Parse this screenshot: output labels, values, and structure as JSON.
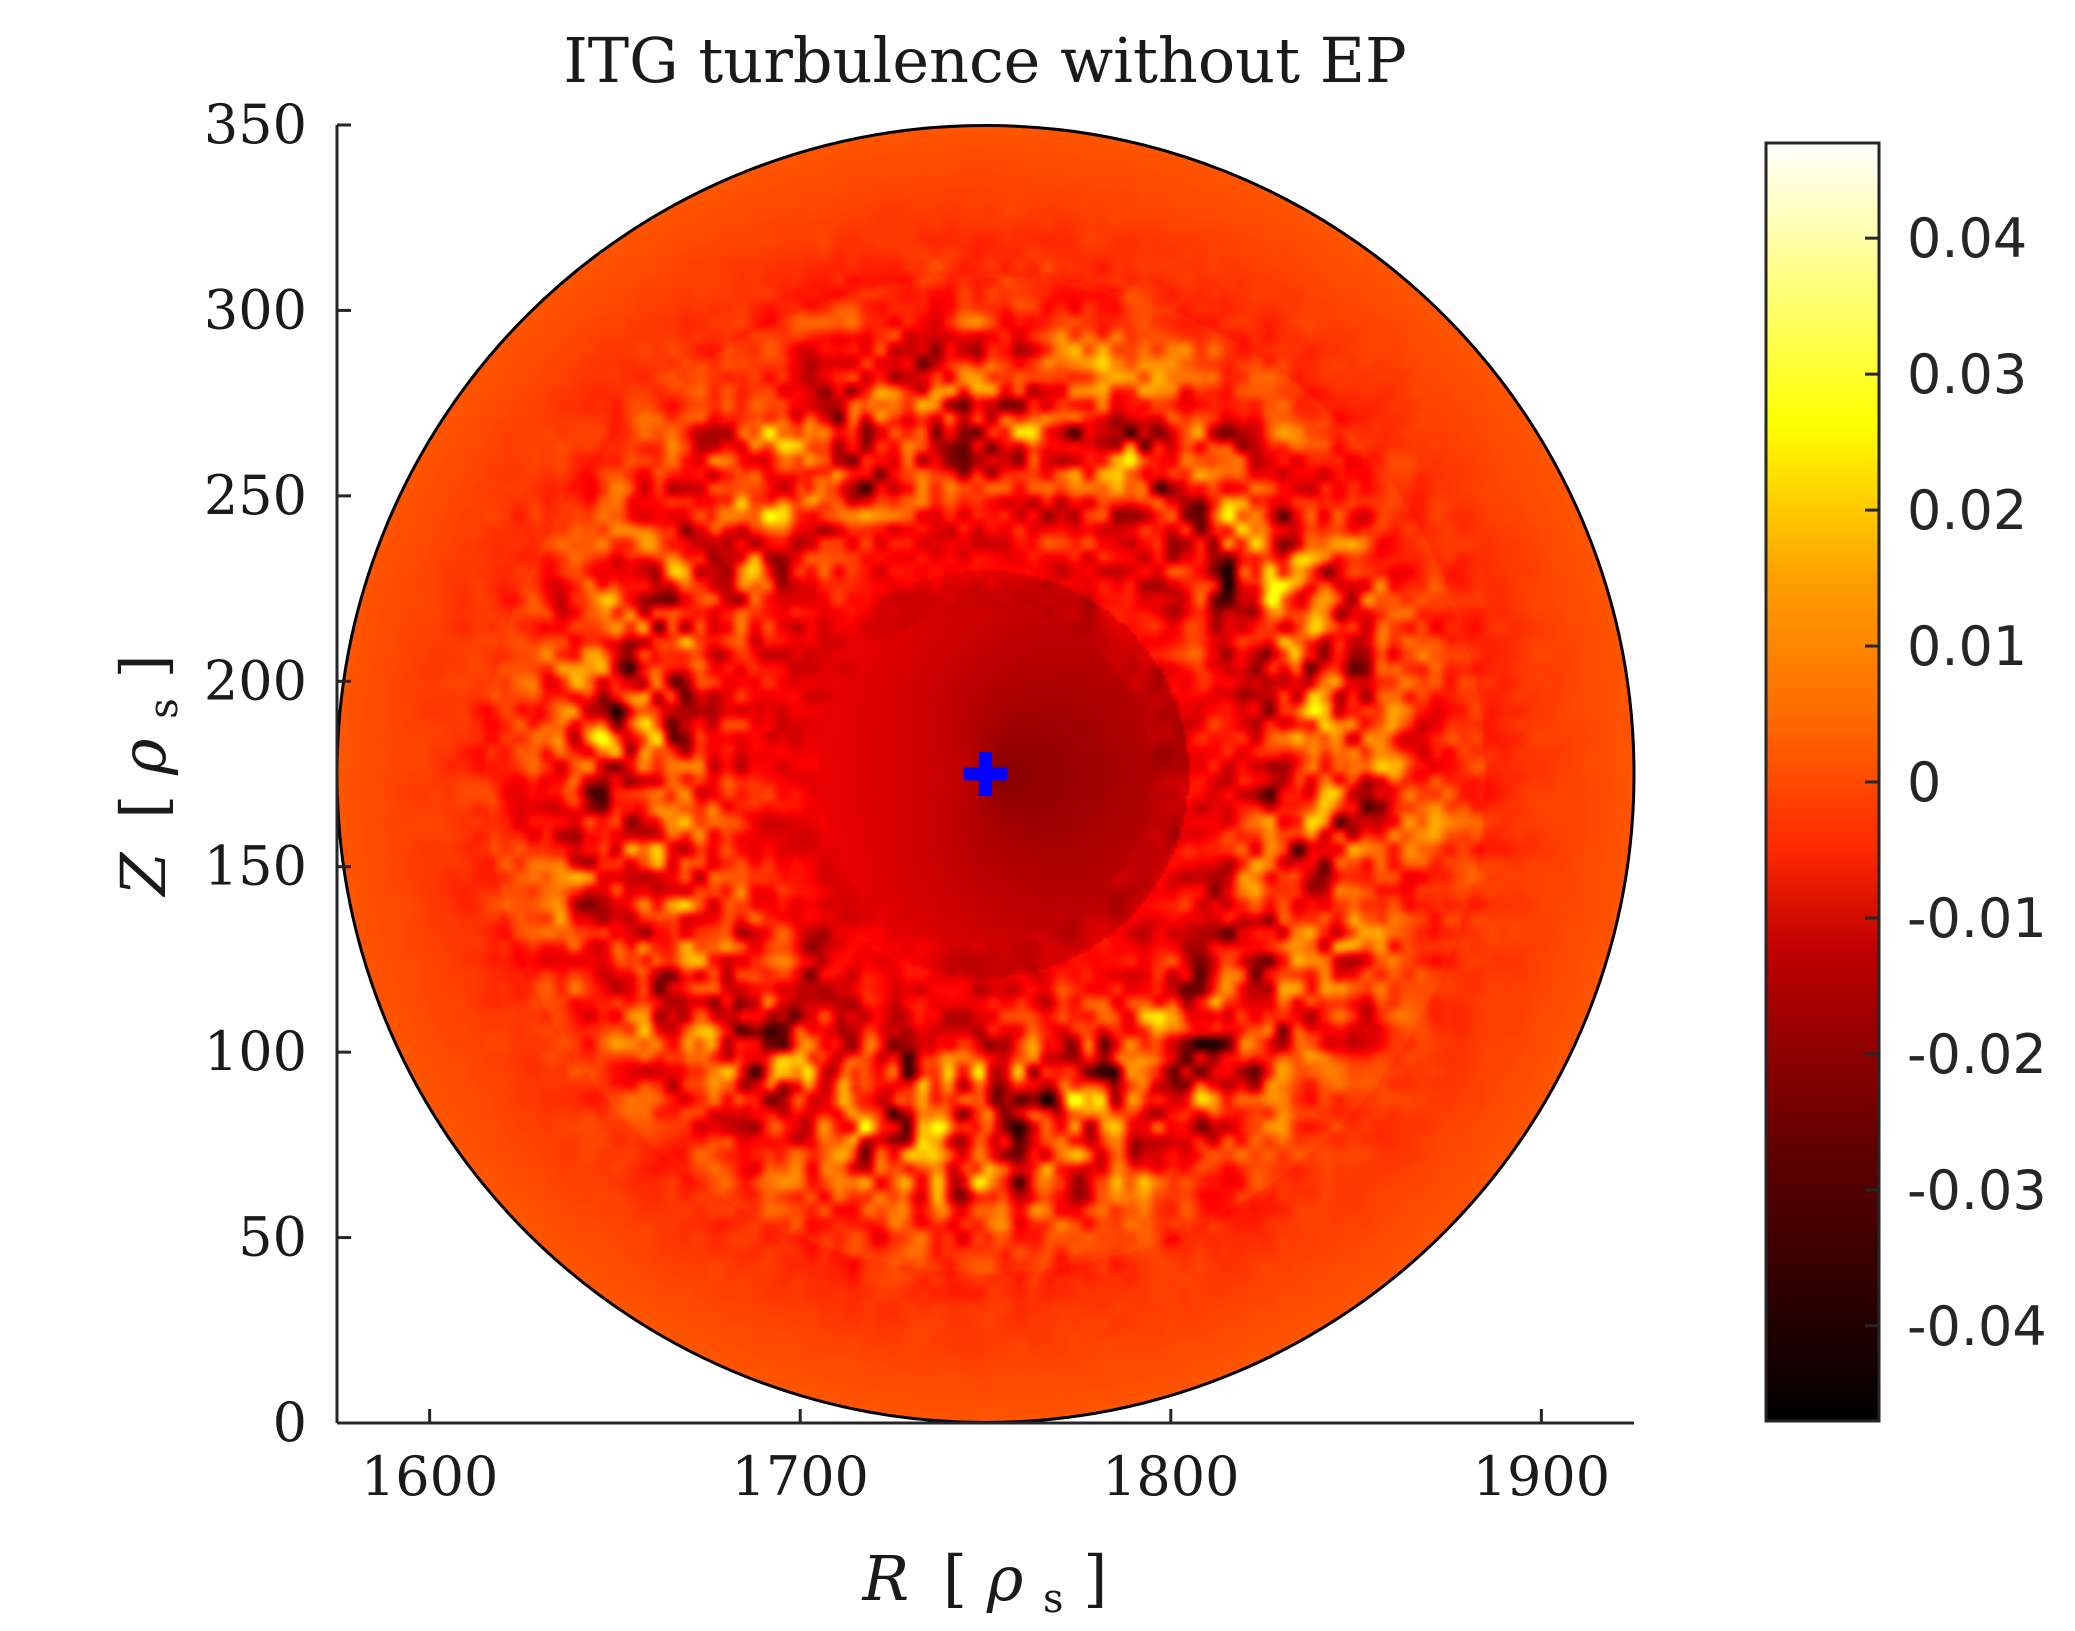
{
  "chart_data": {
    "type": "heatmap",
    "title": "ITG turbulence without EP",
    "xlabel": {
      "symbol": "R",
      "bracket_open": "[",
      "unit": "ρ",
      "unit_sub": "s",
      "bracket_close": "]"
    },
    "ylabel": {
      "symbol": "Z",
      "bracket_open": "[",
      "unit": "ρ",
      "unit_sub": "s",
      "bracket_close": "]"
    },
    "xlim": [
      1575,
      1925
    ],
    "ylim": [
      0,
      350
    ],
    "xticks": [
      1600,
      1700,
      1800,
      1900
    ],
    "xtick_labels": [
      "1600",
      "1700",
      "1800",
      "1900"
    ],
    "yticks": [
      0,
      50,
      100,
      150,
      200,
      250,
      300,
      350
    ],
    "ytick_labels": [
      "0",
      "50",
      "100",
      "150",
      "200",
      "250",
      "300",
      "350"
    ],
    "domain": {
      "shape": "circle",
      "center_R": 1750,
      "center_Z": 175,
      "radius": 175
    },
    "marker": {
      "shape": "plus",
      "R": 1750,
      "Z": 175,
      "color": "#0000ff"
    },
    "field": {
      "description_level": "turbulent ring annulus",
      "ring_inner_radius": 55,
      "ring_outer_radius": 135,
      "core_value": -0.025,
      "edge_value": 0.0,
      "amplitude": 0.03
    },
    "colorbar": {
      "colormap": "hot",
      "clim": [
        -0.047,
        0.047
      ],
      "ticks": [
        0.04,
        0.03,
        0.02,
        0.01,
        0,
        -0.01,
        -0.02,
        -0.03,
        -0.04
      ],
      "tick_labels": [
        "0.04",
        "0.03",
        "0.02",
        "0.01",
        "0",
        "-0.01",
        "-0.02",
        "-0.03",
        "-0.04"
      ],
      "placement": "right"
    },
    "grid": false
  }
}
